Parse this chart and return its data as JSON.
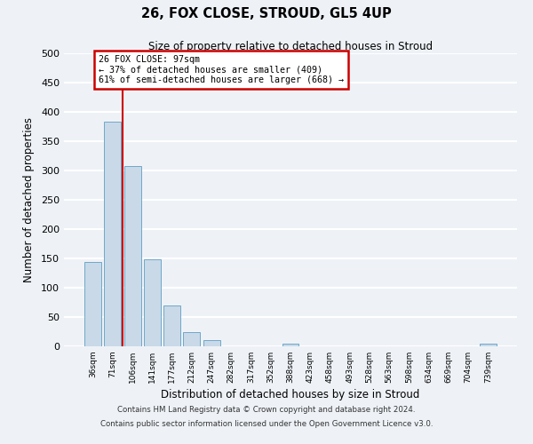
{
  "title": "26, FOX CLOSE, STROUD, GL5 4UP",
  "subtitle": "Size of property relative to detached houses in Stroud",
  "xlabel": "Distribution of detached houses by size in Stroud",
  "ylabel": "Number of detached properties",
  "bin_labels": [
    "36sqm",
    "71sqm",
    "106sqm",
    "141sqm",
    "177sqm",
    "212sqm",
    "247sqm",
    "282sqm",
    "317sqm",
    "352sqm",
    "388sqm",
    "423sqm",
    "458sqm",
    "493sqm",
    "528sqm",
    "563sqm",
    "598sqm",
    "634sqm",
    "669sqm",
    "704sqm",
    "739sqm"
  ],
  "bar_values": [
    144,
    383,
    308,
    149,
    70,
    25,
    10,
    0,
    0,
    0,
    5,
    0,
    0,
    0,
    0,
    0,
    0,
    0,
    0,
    0,
    4
  ],
  "bar_color": "#c9d9e8",
  "bar_edgecolor": "#6fa8c8",
  "property_line_bin": 1.5,
  "vline_color": "#cc0000",
  "annotation_title": "26 FOX CLOSE: 97sqm",
  "annotation_line1": "← 37% of detached houses are smaller (409)",
  "annotation_line2": "61% of semi-detached houses are larger (668) →",
  "annotation_box_color": "#cc0000",
  "ylim": [
    0,
    500
  ],
  "yticks": [
    0,
    50,
    100,
    150,
    200,
    250,
    300,
    350,
    400,
    450,
    500
  ],
  "background_color": "#eef2f7",
  "grid_color": "#ffffff",
  "footer1": "Contains HM Land Registry data © Crown copyright and database right 2024.",
  "footer2": "Contains public sector information licensed under the Open Government Licence v3.0."
}
